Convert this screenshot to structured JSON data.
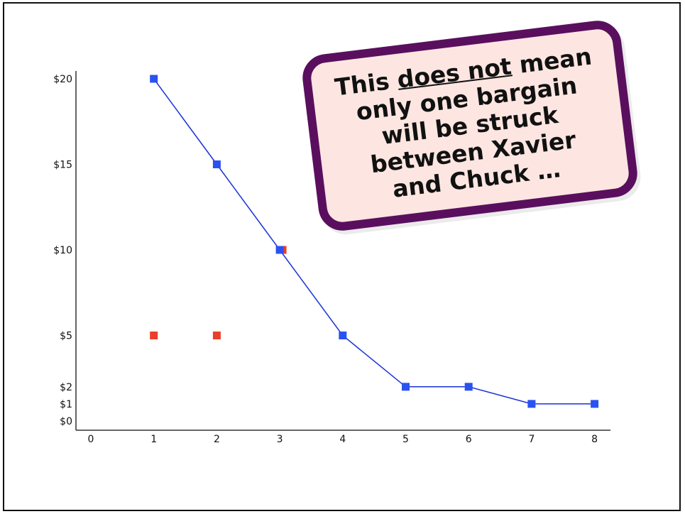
{
  "callout": {
    "line1_pre": "This",
    "line1_underlined": "does not",
    "line1_post": "mean",
    "lines": [
      "only one bargain",
      "will be struck",
      "between Xavier",
      "and Chuck …"
    ]
  },
  "colors": {
    "line": "#1a33d6",
    "blue_marker": "#2a52f0",
    "red_marker": "#e8402a",
    "callout_border": "#5a0f5e",
    "callout_fill": "#fde6e1"
  },
  "chart_data": {
    "type": "scatter",
    "title": "",
    "xlabel": "",
    "ylabel": "",
    "xlim": [
      0,
      8
    ],
    "ylim": [
      0,
      20
    ],
    "x_ticks": [
      "0",
      "1",
      "2",
      "3",
      "4",
      "5",
      "6",
      "7",
      "8"
    ],
    "y_ticks": [
      {
        "value": 0,
        "label": "$0"
      },
      {
        "value": 1,
        "label": "$1"
      },
      {
        "value": 2,
        "label": "$2"
      },
      {
        "value": 5,
        "label": "$5"
      },
      {
        "value": 10,
        "label": "$10"
      },
      {
        "value": 15,
        "label": "$15"
      },
      {
        "value": 20,
        "label": "$20"
      }
    ],
    "grid": false,
    "series": [
      {
        "color_key": "blue_marker",
        "connected": true,
        "points": [
          {
            "x": 1,
            "y": 20
          },
          {
            "x": 2,
            "y": 15
          },
          {
            "x": 3,
            "y": 10
          },
          {
            "x": 4,
            "y": 5
          },
          {
            "x": 5,
            "y": 2
          },
          {
            "x": 6,
            "y": 2
          },
          {
            "x": 7,
            "y": 1
          },
          {
            "x": 8,
            "y": 1
          }
        ]
      },
      {
        "color_key": "red_marker",
        "connected": false,
        "points": [
          {
            "x": 1,
            "y": 5
          },
          {
            "x": 2,
            "y": 5
          },
          {
            "x": 3,
            "y": 10
          }
        ]
      }
    ]
  }
}
